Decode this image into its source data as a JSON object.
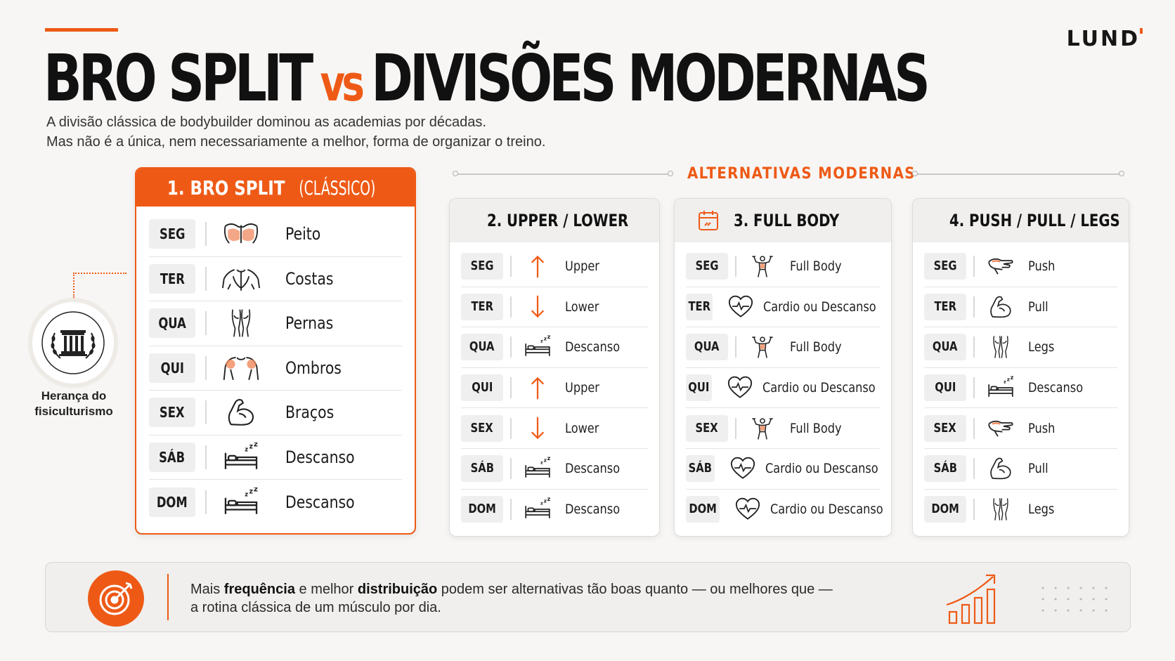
{
  "brand": {
    "logo": "LUND",
    "accent": "#ee5a16"
  },
  "header": {
    "title_left": "BRO SPLIT",
    "title_vs": "vs",
    "title_right": "DIVISÕES MODERNAS",
    "subtitle_line1": "A divisão clássica de bodybuilder dominou as academias por décadas.",
    "subtitle_line2": "Mas não é a única, nem necessariamente a melhor, forma de organizar o treino."
  },
  "heritage": {
    "line1": "Herança do",
    "line2": "fisiculturismo",
    "icon": "column-laurel-icon"
  },
  "bro_split": {
    "title_bold": "1. BRO SPLIT",
    "title_light": "(CLÁSSICO)",
    "rows": [
      {
        "day": "SEG",
        "label": "Peito",
        "icon": "chest-icon"
      },
      {
        "day": "TER",
        "label": "Costas",
        "icon": "back-icon"
      },
      {
        "day": "QUA",
        "label": "Pernas",
        "icon": "legs-icon"
      },
      {
        "day": "QUI",
        "label": "Ombros",
        "icon": "shoulders-icon"
      },
      {
        "day": "SEX",
        "label": "Braços",
        "icon": "biceps-icon"
      },
      {
        "day": "SÁB",
        "label": "Descanso",
        "icon": "bed-icon"
      },
      {
        "day": "DOM",
        "label": "Descanso",
        "icon": "bed-icon"
      }
    ]
  },
  "alternatives": {
    "title": "ALTERNATIVAS MODERNAS",
    "cards": [
      {
        "title": "2. UPPER / LOWER",
        "rows": [
          {
            "day": "SEG",
            "label": "Upper",
            "icon": "arrow-up-icon"
          },
          {
            "day": "TER",
            "label": "Lower",
            "icon": "arrow-down-icon"
          },
          {
            "day": "QUA",
            "label": "Descanso",
            "icon": "bed-icon"
          },
          {
            "day": "QUI",
            "label": "Upper",
            "icon": "arrow-up-icon"
          },
          {
            "day": "SEX",
            "label": "Lower",
            "icon": "arrow-down-icon"
          },
          {
            "day": "SÁB",
            "label": "Descanso",
            "icon": "bed-icon"
          },
          {
            "day": "DOM",
            "label": "Descanso",
            "icon": "bed-icon"
          }
        ]
      },
      {
        "title": "3. FULL BODY",
        "rows": [
          {
            "day": "SEG",
            "label": "Full Body",
            "icon": "full-body-icon"
          },
          {
            "day": "TER",
            "label": "Cardio ou Descanso",
            "icon": "heart-pulse-icon"
          },
          {
            "day": "QUA",
            "label": "Full Body",
            "icon": "full-body-icon"
          },
          {
            "day": "QUI",
            "label": "Cardio ou Descanso",
            "icon": "heart-pulse-icon"
          },
          {
            "day": "SEX",
            "label": "Full Body",
            "icon": "full-body-icon"
          },
          {
            "day": "SÁB",
            "label": "Cardio ou Descanso",
            "icon": "heart-pulse-icon"
          },
          {
            "day": "DOM",
            "label": "Cardio ou Descanso",
            "icon": "heart-pulse-icon"
          }
        ]
      },
      {
        "title": "4. PUSH / PULL / LEGS",
        "rows": [
          {
            "day": "SEG",
            "label": "Push",
            "icon": "push-arm-icon"
          },
          {
            "day": "TER",
            "label": "Pull",
            "icon": "biceps-icon"
          },
          {
            "day": "QUA",
            "label": "Legs",
            "icon": "legs-icon"
          },
          {
            "day": "QUI",
            "label": "Descanso",
            "icon": "bed-icon"
          },
          {
            "day": "SEX",
            "label": "Push",
            "icon": "push-arm-icon"
          },
          {
            "day": "SÁB",
            "label": "Pull",
            "icon": "biceps-icon"
          },
          {
            "day": "DOM",
            "label": "Legs",
            "icon": "legs-icon"
          }
        ]
      }
    ]
  },
  "footer": {
    "t1": "Mais ",
    "b1": "frequência",
    "t2": " e melhor ",
    "b2": "distribuição",
    "t3": " podem ser alternativas tão boas quanto — ou melhores que —",
    "line2": "a rotina clássica de um músculo por dia.",
    "icon": "target-icon",
    "chart_icon": "growth-chart-icon"
  }
}
